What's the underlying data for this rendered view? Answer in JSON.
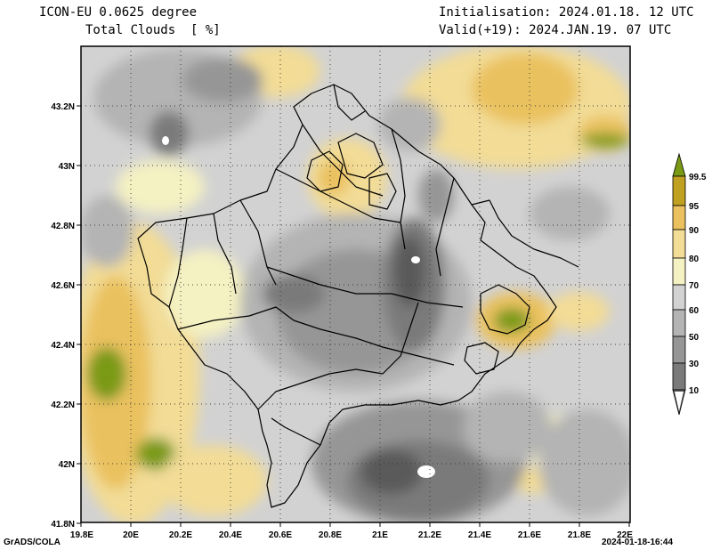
{
  "header": {
    "model": "ICON-EU 0.0625 degree",
    "field": "Total Clouds  [ %]",
    "init": "Initialisation: 2024.01.18. 12 UTC",
    "valid": "Valid(+19): 2024.JAN.19. 07 UTC"
  },
  "axes": {
    "lon_labels": [
      "19.8E",
      "20E",
      "20.2E",
      "20.4E",
      "20.6E",
      "20.8E",
      "21E",
      "21.2E",
      "21.4E",
      "21.6E",
      "21.8E",
      "22E"
    ],
    "lat_labels": [
      "41.8N",
      "42N",
      "42.2N",
      "42.4N",
      "42.6N",
      "42.8N",
      "43N",
      "43.2N"
    ]
  },
  "colorbar": {
    "levels": [
      "10",
      "30",
      "50",
      "60",
      "70",
      "80",
      "90",
      "95",
      "99.5"
    ],
    "colors": [
      "#5a5a5a",
      "#7a7a7a",
      "#969696",
      "#b4b4b4",
      "#d2d2d2",
      "#f4f1c2",
      "#f2dc96",
      "#eac15e",
      "#c0a020",
      "#7a9a14"
    ]
  },
  "footer": {
    "left": "GrADS/COLA",
    "right": "2024-01-18-16:44"
  }
}
